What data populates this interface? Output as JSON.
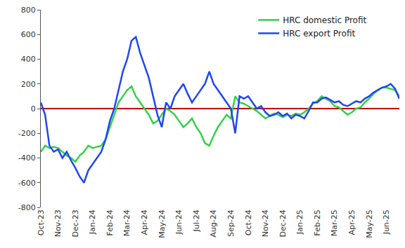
{
  "chart_data": {
    "type": "line",
    "categories": [
      "Oct-23",
      null,
      null,
      null,
      "Nov-23",
      null,
      null,
      null,
      "Dec-23",
      null,
      null,
      null,
      "Jan-24",
      null,
      null,
      null,
      "Feb-24",
      null,
      null,
      null,
      "Mar-24",
      null,
      null,
      null,
      "Apr-24",
      null,
      null,
      null,
      "May-24",
      null,
      null,
      null,
      "Jun-24",
      null,
      null,
      null,
      "Jul-24",
      null,
      null,
      null,
      "Aug-24",
      null,
      null,
      null,
      "Sep-24",
      null,
      null,
      null,
      "Oct-24",
      null,
      null,
      null,
      "Nov-24",
      null,
      null,
      null,
      "Dec-24",
      null,
      null,
      null,
      "Jan-25",
      null,
      null,
      null,
      "Feb-25",
      null,
      null,
      null,
      "Mar-25",
      null,
      null,
      null,
      "Apr-25",
      null,
      null,
      null,
      "May-25",
      null,
      null,
      null,
      "Jun-25",
      null,
      null,
      null
    ],
    "series": [
      {
        "name": "HRC domestic Profit",
        "color": "#33d14a",
        "values": [
          -350,
          -300,
          -320,
          -310,
          -320,
          -350,
          -380,
          -400,
          -430,
          -380,
          -350,
          -300,
          -320,
          -310,
          -300,
          -250,
          -150,
          -50,
          50,
          100,
          150,
          180,
          100,
          50,
          0,
          -50,
          -120,
          -100,
          -50,
          0,
          -20,
          -50,
          -100,
          -150,
          -120,
          -80,
          -150,
          -200,
          -280,
          -300,
          -220,
          -150,
          -100,
          -50,
          -80,
          100,
          50,
          40,
          20,
          0,
          -20,
          -50,
          -80,
          -60,
          -40,
          -50,
          -70,
          -50,
          -60,
          -40,
          -50,
          -30,
          0,
          40,
          60,
          100,
          80,
          60,
          20,
          10,
          -20,
          -50,
          -30,
          0,
          10,
          50,
          80,
          120,
          150,
          170,
          170,
          160,
          150,
          100
        ]
      },
      {
        "name": "HRC export Profit",
        "color": "#1f47f0",
        "values": [
          50,
          -50,
          -300,
          -350,
          -330,
          -400,
          -350,
          -420,
          -480,
          -550,
          -600,
          -500,
          -450,
          -400,
          -350,
          -250,
          -100,
          0,
          150,
          300,
          400,
          550,
          580,
          450,
          350,
          250,
          100,
          -50,
          -150,
          50,
          0,
          100,
          150,
          200,
          120,
          50,
          100,
          150,
          200,
          300,
          200,
          150,
          100,
          50,
          0,
          -200,
          100,
          80,
          100,
          50,
          0,
          20,
          -30,
          -60,
          -50,
          -30,
          -60,
          -40,
          -80,
          -50,
          -60,
          -80,
          -20,
          50,
          50,
          80,
          90,
          70,
          50,
          60,
          30,
          20,
          40,
          60,
          50,
          80,
          100,
          130,
          150,
          170,
          180,
          200,
          160,
          80
        ]
      }
    ],
    "ylim": [
      -800,
      800
    ],
    "yticks": [
      -800,
      -600,
      -400,
      -200,
      0,
      200,
      400,
      600,
      800
    ],
    "grid": false,
    "legend": "upper right"
  }
}
